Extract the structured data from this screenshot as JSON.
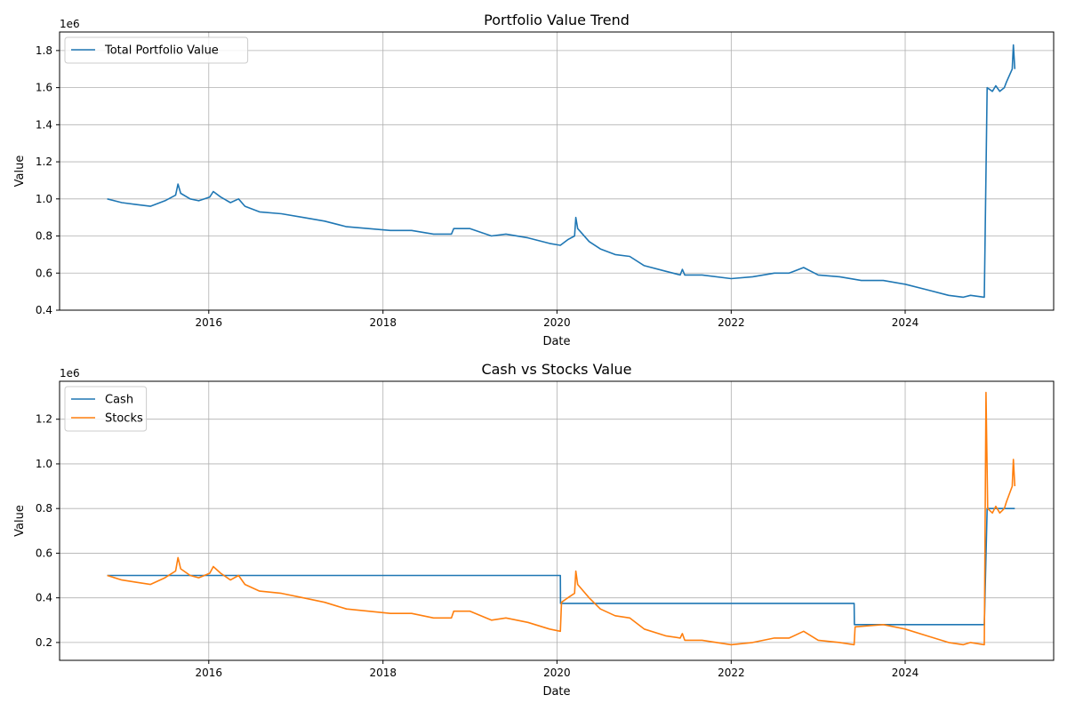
{
  "chart_data": [
    {
      "type": "line",
      "title": "Portfolio Value Trend",
      "xlabel": "Date",
      "ylabel": "Value",
      "y_offset_label": "1e6",
      "xlim": [
        "2014-04-15",
        "2025-09-15"
      ],
      "ylim": [
        0.4,
        1.9
      ],
      "x_ticks": [
        "2016-01-01",
        "2018-01-01",
        "2020-01-01",
        "2022-01-01",
        "2024-01-01"
      ],
      "x_tick_labels": [
        "2016",
        "2018",
        "2020",
        "2022",
        "2024"
      ],
      "y_ticks": [
        0.4,
        0.6,
        0.8,
        1.0,
        1.2,
        1.4,
        1.6,
        1.8
      ],
      "y_tick_labels": [
        "0.4",
        "0.6",
        "0.8",
        "1.0",
        "1.2",
        "1.4",
        "1.6",
        "1.8"
      ],
      "grid": true,
      "legend_position": "top-left",
      "series": [
        {
          "name": "Total Portfolio Value",
          "color": "#1f77b4",
          "points": [
            [
              "2014-11-01",
              1.0
            ],
            [
              "2015-01-01",
              0.98
            ],
            [
              "2015-03-01",
              0.97
            ],
            [
              "2015-05-01",
              0.96
            ],
            [
              "2015-07-01",
              0.99
            ],
            [
              "2015-08-15",
              1.02
            ],
            [
              "2015-08-25",
              1.08
            ],
            [
              "2015-09-05",
              1.03
            ],
            [
              "2015-10-15",
              1.0
            ],
            [
              "2015-11-20",
              0.99
            ],
            [
              "2016-01-05",
              1.01
            ],
            [
              "2016-01-20",
              1.04
            ],
            [
              "2016-02-20",
              1.01
            ],
            [
              "2016-04-01",
              0.98
            ],
            [
              "2016-05-05",
              1.0
            ],
            [
              "2016-06-01",
              0.96
            ],
            [
              "2016-08-01",
              0.93
            ],
            [
              "2016-11-01",
              0.92
            ],
            [
              "2017-02-01",
              0.9
            ],
            [
              "2017-05-01",
              0.88
            ],
            [
              "2017-08-01",
              0.85
            ],
            [
              "2017-11-01",
              0.84
            ],
            [
              "2018-02-01",
              0.83
            ],
            [
              "2018-05-01",
              0.83
            ],
            [
              "2018-08-01",
              0.81
            ],
            [
              "2018-10-15",
              0.81
            ],
            [
              "2018-10-25",
              0.84
            ],
            [
              "2019-01-01",
              0.84
            ],
            [
              "2019-04-01",
              0.8
            ],
            [
              "2019-06-01",
              0.81
            ],
            [
              "2019-09-01",
              0.79
            ],
            [
              "2019-12-01",
              0.76
            ],
            [
              "2020-01-15",
              0.75
            ],
            [
              "2020-02-15",
              0.78
            ],
            [
              "2020-03-15",
              0.8
            ],
            [
              "2020-03-20",
              0.9
            ],
            [
              "2020-03-28",
              0.84
            ],
            [
              "2020-05-15",
              0.77
            ],
            [
              "2020-07-01",
              0.73
            ],
            [
              "2020-09-01",
              0.7
            ],
            [
              "2020-11-01",
              0.69
            ],
            [
              "2021-01-01",
              0.64
            ],
            [
              "2021-04-01",
              0.61
            ],
            [
              "2021-06-01",
              0.59
            ],
            [
              "2021-06-10",
              0.62
            ],
            [
              "2021-06-20",
              0.59
            ],
            [
              "2021-09-01",
              0.59
            ],
            [
              "2022-01-01",
              0.57
            ],
            [
              "2022-04-01",
              0.58
            ],
            [
              "2022-07-01",
              0.6
            ],
            [
              "2022-09-01",
              0.6
            ],
            [
              "2022-11-01",
              0.63
            ],
            [
              "2023-01-01",
              0.59
            ],
            [
              "2023-04-01",
              0.58
            ],
            [
              "2023-07-01",
              0.56
            ],
            [
              "2023-10-01",
              0.56
            ],
            [
              "2024-01-01",
              0.54
            ],
            [
              "2024-04-01",
              0.51
            ],
            [
              "2024-07-01",
              0.48
            ],
            [
              "2024-09-01",
              0.47
            ],
            [
              "2024-10-01",
              0.48
            ],
            [
              "2024-11-28",
              0.47
            ],
            [
              "2024-12-10",
              1.6
            ],
            [
              "2025-01-01",
              1.58
            ],
            [
              "2025-01-15",
              1.61
            ],
            [
              "2025-02-01",
              1.58
            ],
            [
              "2025-02-20",
              1.6
            ],
            [
              "2025-03-01",
              1.63
            ],
            [
              "2025-03-25",
              1.7
            ],
            [
              "2025-03-30",
              1.83
            ],
            [
              "2025-04-05",
              1.7
            ]
          ]
        }
      ]
    },
    {
      "type": "line",
      "title": "Cash vs Stocks Value",
      "xlabel": "Date",
      "ylabel": "Value",
      "y_offset_label": "1e6",
      "xlim": [
        "2014-04-15",
        "2025-09-15"
      ],
      "ylim": [
        0.12,
        1.37
      ],
      "x_ticks": [
        "2016-01-01",
        "2018-01-01",
        "2020-01-01",
        "2022-01-01",
        "2024-01-01"
      ],
      "x_tick_labels": [
        "2016",
        "2018",
        "2020",
        "2022",
        "2024"
      ],
      "y_ticks": [
        0.2,
        0.4,
        0.6,
        0.8,
        1.0,
        1.2
      ],
      "y_tick_labels": [
        "0.2",
        "0.4",
        "0.6",
        "0.8",
        "1.0",
        "1.2"
      ],
      "grid": true,
      "legend_position": "top-left",
      "series": [
        {
          "name": "Cash",
          "color": "#1f77b4",
          "points": [
            [
              "2014-11-01",
              0.5
            ],
            [
              "2020-01-15",
              0.5
            ],
            [
              "2020-01-16",
              0.375
            ],
            [
              "2023-06-01",
              0.375
            ],
            [
              "2023-06-02",
              0.28
            ],
            [
              "2024-11-28",
              0.28
            ],
            [
              "2024-12-10",
              0.8
            ],
            [
              "2025-04-05",
              0.8
            ]
          ]
        },
        {
          "name": "Stocks",
          "color": "#ff7f0e",
          "points": [
            [
              "2014-11-01",
              0.5
            ],
            [
              "2015-01-01",
              0.48
            ],
            [
              "2015-03-01",
              0.47
            ],
            [
              "2015-05-01",
              0.46
            ],
            [
              "2015-07-01",
              0.49
            ],
            [
              "2015-08-15",
              0.52
            ],
            [
              "2015-08-25",
              0.58
            ],
            [
              "2015-09-05",
              0.53
            ],
            [
              "2015-10-15",
              0.5
            ],
            [
              "2015-11-20",
              0.49
            ],
            [
              "2016-01-05",
              0.51
            ],
            [
              "2016-01-20",
              0.54
            ],
            [
              "2016-02-20",
              0.51
            ],
            [
              "2016-04-01",
              0.48
            ],
            [
              "2016-05-05",
              0.5
            ],
            [
              "2016-06-01",
              0.46
            ],
            [
              "2016-08-01",
              0.43
            ],
            [
              "2016-11-01",
              0.42
            ],
            [
              "2017-02-01",
              0.4
            ],
            [
              "2017-05-01",
              0.38
            ],
            [
              "2017-08-01",
              0.35
            ],
            [
              "2017-11-01",
              0.34
            ],
            [
              "2018-02-01",
              0.33
            ],
            [
              "2018-05-01",
              0.33
            ],
            [
              "2018-08-01",
              0.31
            ],
            [
              "2018-10-15",
              0.31
            ],
            [
              "2018-10-25",
              0.34
            ],
            [
              "2019-01-01",
              0.34
            ],
            [
              "2019-04-01",
              0.3
            ],
            [
              "2019-06-01",
              0.31
            ],
            [
              "2019-09-01",
              0.29
            ],
            [
              "2019-12-01",
              0.26
            ],
            [
              "2020-01-15",
              0.25
            ],
            [
              "2020-01-20",
              0.38
            ],
            [
              "2020-02-15",
              0.4
            ],
            [
              "2020-03-15",
              0.42
            ],
            [
              "2020-03-20",
              0.52
            ],
            [
              "2020-03-28",
              0.46
            ],
            [
              "2020-05-15",
              0.4
            ],
            [
              "2020-07-01",
              0.35
            ],
            [
              "2020-09-01",
              0.32
            ],
            [
              "2020-11-01",
              0.31
            ],
            [
              "2021-01-01",
              0.26
            ],
            [
              "2021-04-01",
              0.23
            ],
            [
              "2021-06-01",
              0.22
            ],
            [
              "2021-06-10",
              0.24
            ],
            [
              "2021-06-20",
              0.21
            ],
            [
              "2021-09-01",
              0.21
            ],
            [
              "2022-01-01",
              0.19
            ],
            [
              "2022-04-01",
              0.2
            ],
            [
              "2022-07-01",
              0.22
            ],
            [
              "2022-09-01",
              0.22
            ],
            [
              "2022-11-01",
              0.25
            ],
            [
              "2023-01-01",
              0.21
            ],
            [
              "2023-04-01",
              0.2
            ],
            [
              "2023-06-01",
              0.19
            ],
            [
              "2023-06-05",
              0.27
            ],
            [
              "2023-10-01",
              0.28
            ],
            [
              "2024-01-01",
              0.26
            ],
            [
              "2024-04-01",
              0.23
            ],
            [
              "2024-07-01",
              0.2
            ],
            [
              "2024-09-01",
              0.19
            ],
            [
              "2024-10-01",
              0.2
            ],
            [
              "2024-11-28",
              0.19
            ],
            [
              "2024-12-05",
              1.32
            ],
            [
              "2024-12-12",
              0.8
            ],
            [
              "2025-01-01",
              0.78
            ],
            [
              "2025-01-15",
              0.81
            ],
            [
              "2025-02-01",
              0.78
            ],
            [
              "2025-02-20",
              0.8
            ],
            [
              "2025-03-01",
              0.83
            ],
            [
              "2025-03-25",
              0.9
            ],
            [
              "2025-03-30",
              1.02
            ],
            [
              "2025-04-05",
              0.9
            ]
          ]
        }
      ]
    }
  ]
}
